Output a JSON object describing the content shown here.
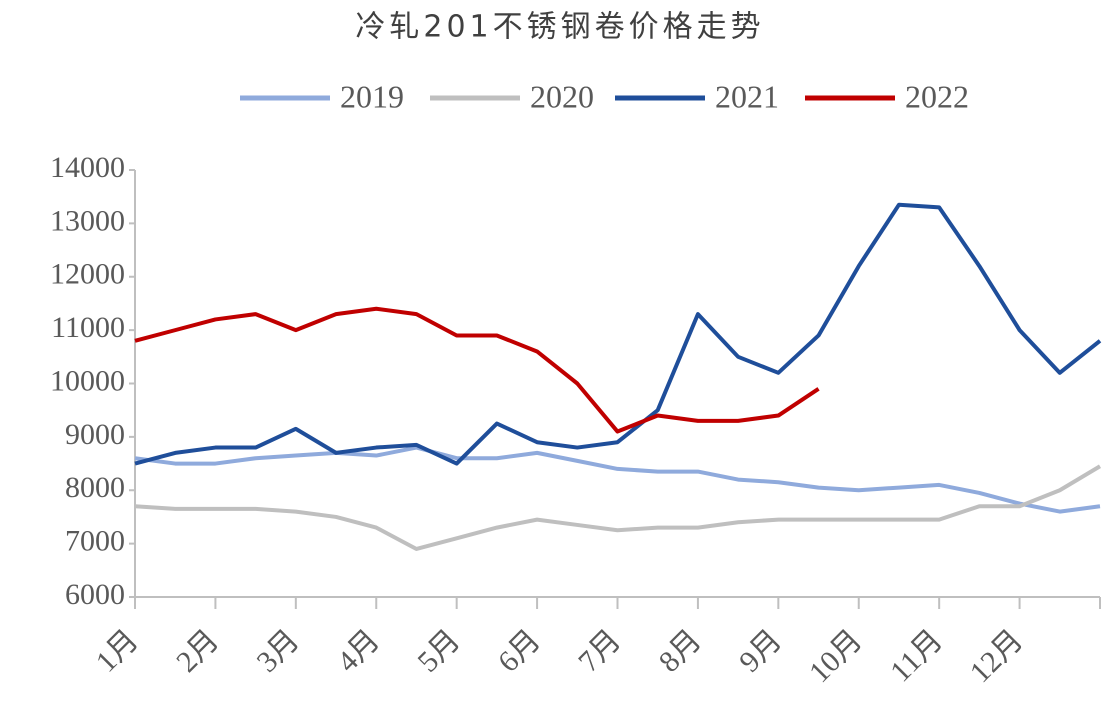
{
  "chart_data": {
    "type": "line",
    "title": "冷轧201不锈钢卷价格走势",
    "x": [
      1,
      1.5,
      2,
      2.5,
      3,
      3.5,
      4,
      4.5,
      5,
      5.5,
      6,
      6.5,
      7,
      7.5,
      8,
      8.5,
      9,
      9.5,
      10,
      10.5,
      11,
      11.5,
      12,
      12.5,
      13
    ],
    "xlim": [
      1,
      13
    ],
    "xticks": [
      {
        "value": 1,
        "label": "1月"
      },
      {
        "value": 2,
        "label": "2月"
      },
      {
        "value": 3,
        "label": "3月"
      },
      {
        "value": 4,
        "label": "4月"
      },
      {
        "value": 5,
        "label": "5月"
      },
      {
        "value": 6,
        "label": "6月"
      },
      {
        "value": 7,
        "label": "7月"
      },
      {
        "value": 8,
        "label": "8月"
      },
      {
        "value": 9,
        "label": "9月"
      },
      {
        "value": 10,
        "label": "10月"
      },
      {
        "value": 11,
        "label": "11月"
      },
      {
        "value": 12,
        "label": "12月"
      }
    ],
    "ylim": [
      6000,
      14000
    ],
    "yticks": [
      6000,
      7000,
      8000,
      9000,
      10000,
      11000,
      12000,
      13000,
      14000
    ],
    "series": [
      {
        "name": "2019",
        "color": "#8faadc",
        "values": [
          8600,
          8500,
          8500,
          8600,
          8650,
          8700,
          8650,
          8800,
          8600,
          8600,
          8700,
          8550,
          8400,
          8350,
          8350,
          8200,
          8150,
          8050,
          8000,
          8050,
          8100,
          7950,
          7750,
          7600,
          7700
        ]
      },
      {
        "name": "2020",
        "color": "#bfbfbf",
        "values": [
          7700,
          7650,
          7650,
          7650,
          7600,
          7500,
          7300,
          6900,
          7100,
          7300,
          7450,
          7350,
          7250,
          7300,
          7300,
          7400,
          7450,
          7450,
          7450,
          7450,
          7450,
          7700,
          7700,
          8000,
          8450
        ]
      },
      {
        "name": "2021",
        "color": "#1f4e9a",
        "values": [
          8500,
          8700,
          8800,
          8800,
          9150,
          8700,
          8800,
          8850,
          8500,
          9250,
          8900,
          8800,
          8900,
          9500,
          11300,
          10500,
          10200,
          10900,
          12200,
          13350,
          13300,
          12200,
          11000,
          10200,
          10800
        ]
      },
      {
        "name": "2022",
        "color": "#c00000",
        "values": [
          10800,
          11000,
          11200,
          11300,
          11000,
          11300,
          11400,
          11300,
          10900,
          10900,
          10600,
          10000,
          9100,
          9400,
          9300,
          9300,
          9400,
          9900,
          null,
          null,
          null,
          null,
          null,
          null,
          null
        ]
      }
    ]
  }
}
